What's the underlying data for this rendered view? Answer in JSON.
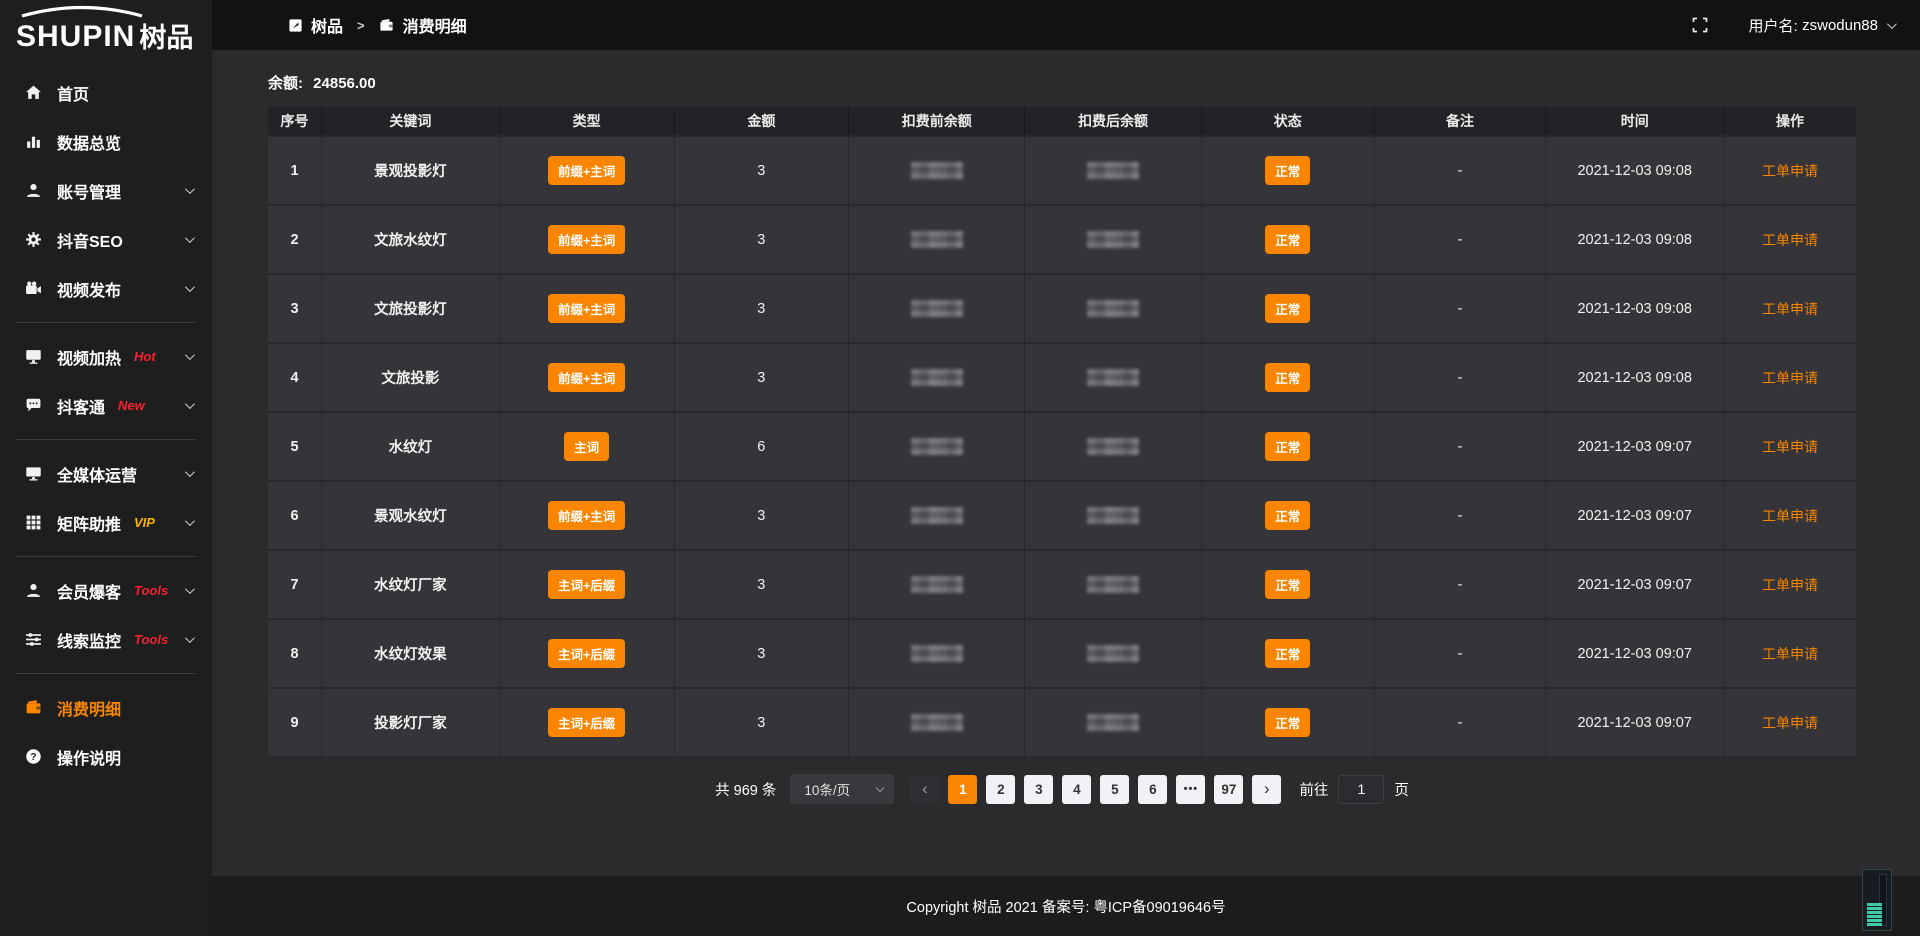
{
  "colors": {
    "accent": "#f98500",
    "tag_red": "#f5222d",
    "tag_gold": "#f5b50a"
  },
  "logo": {
    "en": "SHUPIN",
    "cn": "树品"
  },
  "topbar": {
    "breadcrumb": [
      {
        "icon": "panel",
        "label": "树品"
      },
      {
        "icon": "wallet",
        "label": "消费明细"
      }
    ],
    "separator": ">",
    "username_label": "用户名:",
    "username": "zswodun88"
  },
  "sidebar": {
    "items": [
      {
        "icon": "home",
        "label": "首页"
      },
      {
        "icon": "bar-chart",
        "label": "数据总览"
      },
      {
        "icon": "user",
        "label": "账号管理",
        "chevron": true
      },
      {
        "icon": "gear",
        "label": "抖音SEO",
        "chevron": true
      },
      {
        "icon": "video-camera",
        "label": "视频发布",
        "chevron": true
      },
      {
        "divider": true
      },
      {
        "icon": "screen",
        "label": "视频加热",
        "tag": "Hot",
        "tag_color": "red",
        "chevron": true
      },
      {
        "icon": "chat",
        "label": "抖客通",
        "tag": "New",
        "tag_color": "red",
        "chevron": true
      },
      {
        "divider": true
      },
      {
        "icon": "monitor",
        "label": "全媒体运营",
        "chevron": true
      },
      {
        "icon": "grid",
        "label": "矩阵助推",
        "tag": "VIP",
        "tag_color": "gold",
        "chevron": true
      },
      {
        "divider": true
      },
      {
        "icon": "user",
        "label": "会员爆客",
        "tag": "Tools",
        "tag_color": "red",
        "chevron": true
      },
      {
        "icon": "sliders",
        "label": "线索监控",
        "tag": "Tools",
        "tag_color": "red",
        "chevron": true
      },
      {
        "divider": true
      },
      {
        "icon": "wallet",
        "label": "消费明细",
        "active": true
      },
      {
        "icon": "question",
        "label": "操作说明"
      }
    ]
  },
  "main": {
    "balance_label": "余额:",
    "balance_value": "24856.00",
    "table": {
      "columns": [
        "序号",
        "关键词",
        "类型",
        "金额",
        "扣费前余额",
        "扣费后余额",
        "状态",
        "备注",
        "时间",
        "操作"
      ],
      "balances_blurred": true,
      "rows": [
        {
          "index": "1",
          "keyword": "景观投影灯",
          "type": "前缀+主词",
          "amount": "3",
          "status": "正常",
          "remark": "-",
          "time": "2021-12-03 09:08",
          "action": "工单申请"
        },
        {
          "index": "2",
          "keyword": "文旅水纹灯",
          "type": "前缀+主词",
          "amount": "3",
          "status": "正常",
          "remark": "-",
          "time": "2021-12-03 09:08",
          "action": "工单申请"
        },
        {
          "index": "3",
          "keyword": "文旅投影灯",
          "type": "前缀+主词",
          "amount": "3",
          "status": "正常",
          "remark": "-",
          "time": "2021-12-03 09:08",
          "action": "工单申请"
        },
        {
          "index": "4",
          "keyword": "文旅投影",
          "type": "前缀+主词",
          "amount": "3",
          "status": "正常",
          "remark": "-",
          "time": "2021-12-03 09:08",
          "action": "工单申请"
        },
        {
          "index": "5",
          "keyword": "水纹灯",
          "type": "主词",
          "amount": "6",
          "status": "正常",
          "remark": "-",
          "time": "2021-12-03 09:07",
          "action": "工单申请"
        },
        {
          "index": "6",
          "keyword": "景观水纹灯",
          "type": "前缀+主词",
          "amount": "3",
          "status": "正常",
          "remark": "-",
          "time": "2021-12-03 09:07",
          "action": "工单申请"
        },
        {
          "index": "7",
          "keyword": "水纹灯厂家",
          "type": "主词+后缀",
          "amount": "3",
          "status": "正常",
          "remark": "-",
          "time": "2021-12-03 09:07",
          "action": "工单申请"
        },
        {
          "index": "8",
          "keyword": "水纹灯效果",
          "type": "主词+后缀",
          "amount": "3",
          "status": "正常",
          "remark": "-",
          "time": "2021-12-03 09:07",
          "action": "工单申请"
        },
        {
          "index": "9",
          "keyword": "投影灯厂家",
          "type": "主词+后缀",
          "amount": "3",
          "status": "正常",
          "remark": "-",
          "time": "2021-12-03 09:07",
          "action": "工单申请"
        }
      ]
    }
  },
  "pagination": {
    "total": "共 969 条",
    "page_size": "10条/页",
    "prev_label": "‹",
    "next_label": "›",
    "pages": [
      "1",
      "2",
      "3",
      "4",
      "5",
      "6",
      "...",
      "97"
    ],
    "active_page": "1",
    "goto_label": "前往",
    "goto_value": "1",
    "goto_suffix": "页"
  },
  "footer": {
    "copyright": "Copyright 树品 2021 备案号: 粤ICP备09019646号"
  }
}
